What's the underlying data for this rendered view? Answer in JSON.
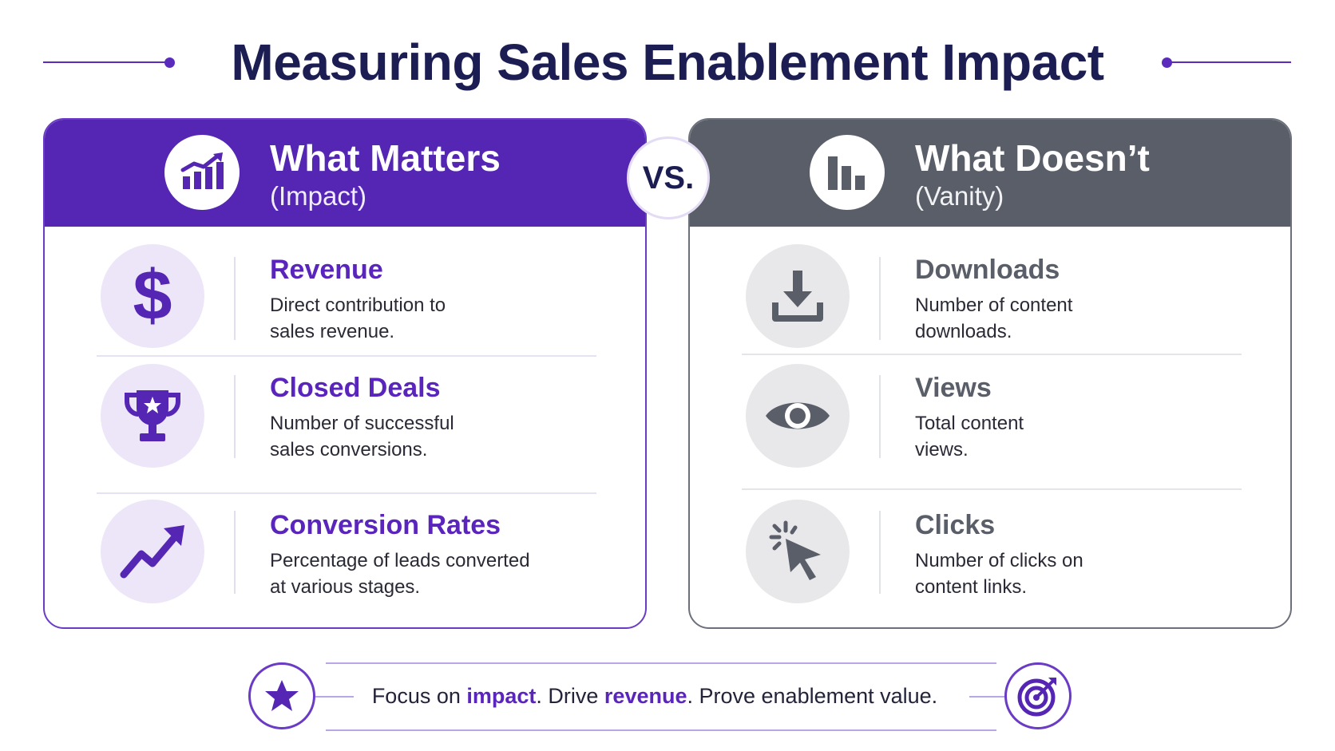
{
  "title": "Measuring Sales Enablement Impact",
  "vs_label": "VS.",
  "left_panel": {
    "title": "What Matters",
    "subtitle": "(Impact)",
    "header_icon": "growth-chart-icon",
    "accent": "#5426b3",
    "items": [
      {
        "icon": "dollar-icon",
        "title": "Revenue",
        "desc_line1": "Direct contribution to",
        "desc_line2": "sales revenue."
      },
      {
        "icon": "trophy-icon",
        "title": "Closed Deals",
        "desc_line1": "Number of successful",
        "desc_line2": "sales conversions."
      },
      {
        "icon": "trend-up-icon",
        "title": "Conversion Rates",
        "desc_line1": "Percentage of leads converted",
        "desc_line2": "at various stages."
      }
    ]
  },
  "right_panel": {
    "title": "What Doesn’t",
    "subtitle": "(Vanity)",
    "header_icon": "bar-chart-icon",
    "accent": "#5a5e68",
    "items": [
      {
        "icon": "download-icon",
        "title": "Downloads",
        "desc_line1": "Number of content",
        "desc_line2": "downloads."
      },
      {
        "icon": "eye-icon",
        "title": "Views",
        "desc_line1": "Total content",
        "desc_line2": "views."
      },
      {
        "icon": "cursor-click-icon",
        "title": "Clicks",
        "desc_line1": "Number of clicks on",
        "desc_line2": "content links."
      }
    ]
  },
  "footer": {
    "part1": "Focus on ",
    "hl1": "impact",
    "part2": ". Drive ",
    "hl2": "revenue",
    "part3": ". Prove enablement value.",
    "left_icon": "star-icon",
    "right_icon": "target-icon"
  }
}
